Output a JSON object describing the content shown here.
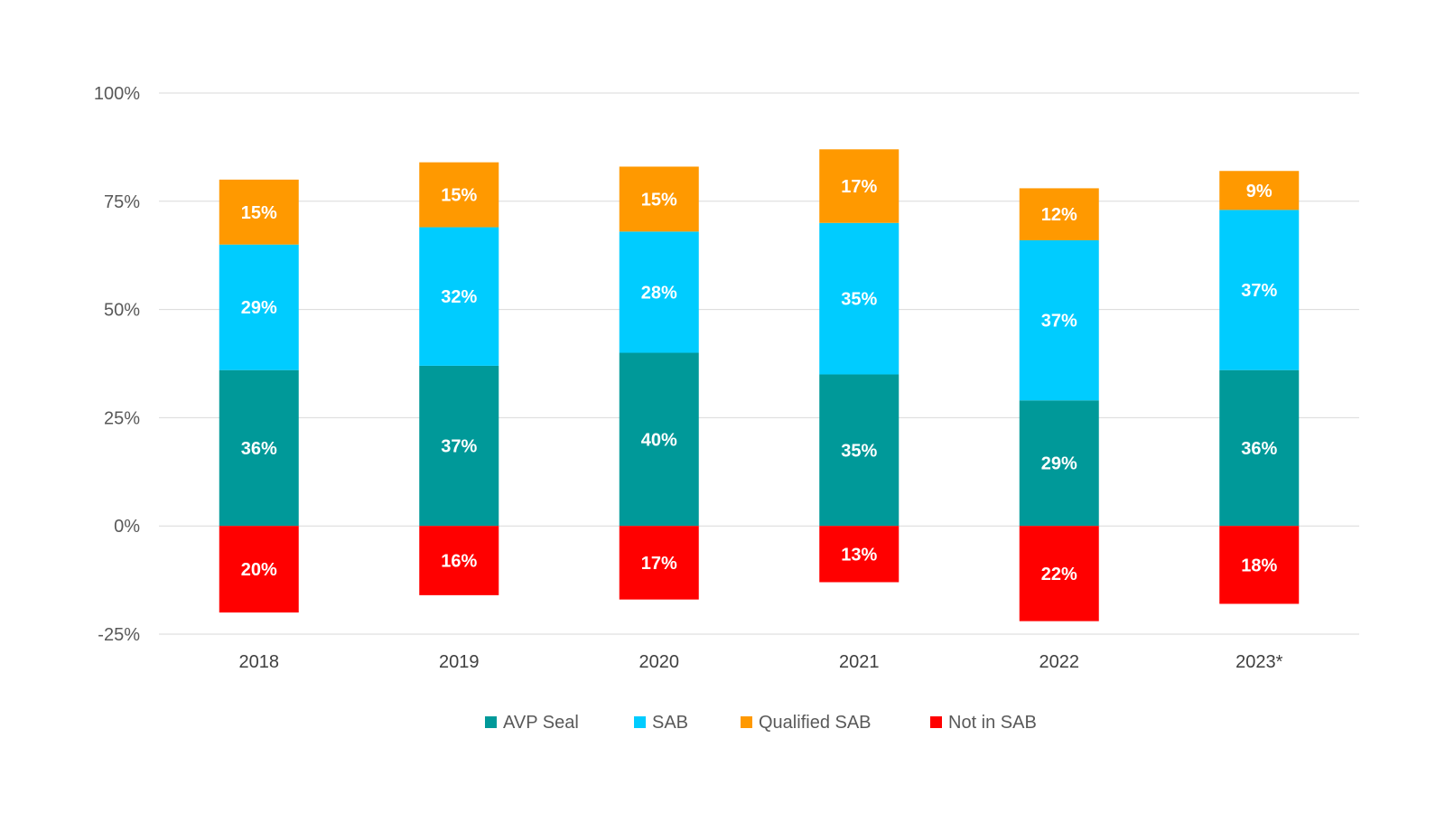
{
  "chart_data": {
    "type": "bar",
    "stacked": true,
    "categories": [
      "2018",
      "2019",
      "2020",
      "2021",
      "2022",
      "2023*"
    ],
    "series": [
      {
        "name": "AVP Seal",
        "color": "#009999",
        "values": [
          36,
          37,
          40,
          35,
          29,
          36
        ]
      },
      {
        "name": "SAB",
        "color": "#00CCFF",
        "values": [
          29,
          32,
          28,
          35,
          37,
          37
        ]
      },
      {
        "name": "Qualified SAB",
        "color": "#FF9900",
        "values": [
          15,
          15,
          15,
          17,
          12,
          9
        ]
      },
      {
        "name": "Not in SAB",
        "color": "#FF0000",
        "values": [
          -20,
          -16,
          -17,
          -13,
          -22,
          -18
        ]
      }
    ],
    "data_labels": {
      "AVP Seal": [
        "36%",
        "37%",
        "40%",
        "35%",
        "29%",
        "36%"
      ],
      "SAB": [
        "29%",
        "32%",
        "28%",
        "35%",
        "37%",
        "37%"
      ],
      "Qualified SAB": [
        "15%",
        "15%",
        "15%",
        "17%",
        "12%",
        "9%"
      ],
      "Not in SAB": [
        "20%",
        "16%",
        "17%",
        "13%",
        "22%",
        "18%"
      ]
    },
    "y_ticks": [
      {
        "value": -25,
        "label": "-25%"
      },
      {
        "value": 0,
        "label": "0%"
      },
      {
        "value": 25,
        "label": "25%"
      },
      {
        "value": 50,
        "label": "50%"
      },
      {
        "value": 75,
        "label": "75%"
      },
      {
        "value": 100,
        "label": "100%"
      }
    ],
    "ylim": [
      -25,
      100
    ],
    "title": "",
    "xlabel": "",
    "ylabel": "",
    "grid": true,
    "legend_position": "bottom",
    "legend": [
      "AVP Seal",
      "SAB",
      "Qualified SAB",
      "Not in SAB"
    ]
  }
}
